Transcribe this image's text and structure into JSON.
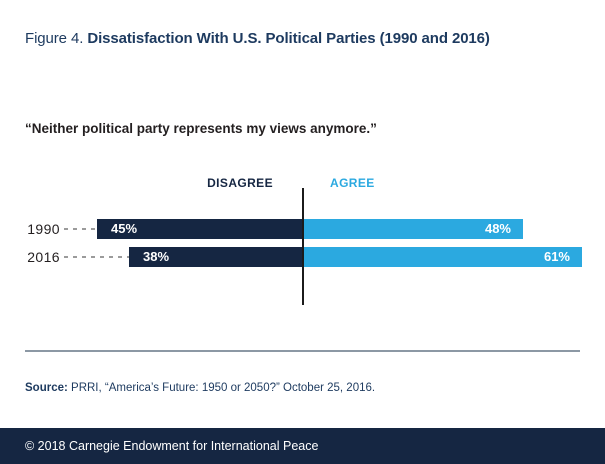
{
  "header": {
    "figure_label": "Figure 4. ",
    "title": "Dissatisfaction With U.S. Political Parties (1990 and 2016)"
  },
  "quote": "“Neither political party represents my views anymore.”",
  "chart_data": {
    "type": "bar",
    "orientation": "horizontal-diverging",
    "title": "Figure 4. Dissatisfaction With U.S. Political Parties (1990 and 2016)",
    "statement": "“Neither political party represents my views anymore.”",
    "categories": [
      "1990",
      "2016"
    ],
    "series": [
      {
        "name": "DISAGREE",
        "side": "left",
        "color": "#152642",
        "values": [
          45,
          38
        ]
      },
      {
        "name": "AGREE",
        "side": "right",
        "color": "#2BA9E0",
        "values": [
          48,
          61
        ]
      }
    ],
    "unit": "%",
    "value_labels": [
      [
        "45%",
        "48%"
      ],
      [
        "38%",
        "61%"
      ]
    ],
    "axis": {
      "center": "divider between DISAGREE and AGREE",
      "max_value_shown": 61
    },
    "legend_position": "above-chart-as-column-headers",
    "grid": false
  },
  "source": {
    "prefix": "Source:",
    "text": " PRRI, “America’s Future: 1950 or 2050?” October 25, 2016."
  },
  "footer": {
    "copyright": "© 2018 Carnegie Endowment for International Peace"
  },
  "colors": {
    "navy": "#152642",
    "light_blue": "#2BA9E0",
    "title_navy": "#1D3A5F",
    "text_dark": "#231F20",
    "divider_gray": "#8C98A4",
    "dash_gray": "#9B9B9B",
    "axis_black": "#1B1B1B",
    "background": "#FFFFFF"
  }
}
